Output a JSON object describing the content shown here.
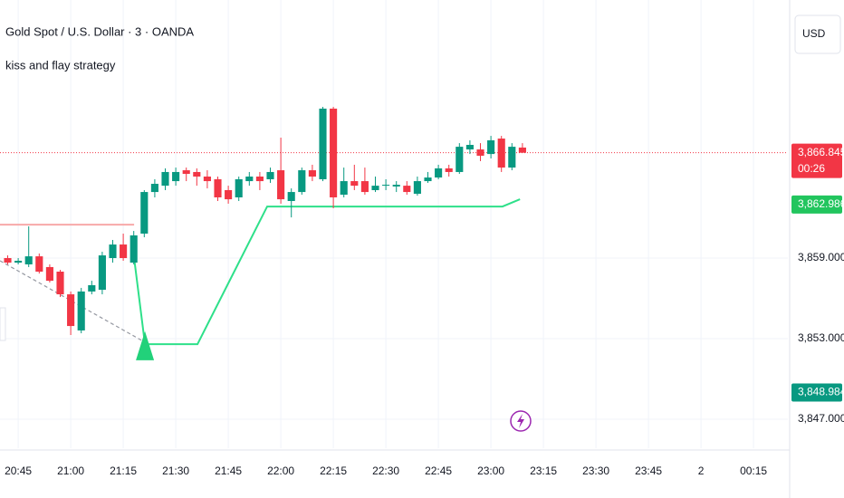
{
  "header": {
    "title": "Gold Spot / U.S. Dollar · 3 · OANDA",
    "indicator": "kiss and flay strategy",
    "currency": "USD"
  },
  "chart_data": {
    "type": "candlestick",
    "x": [
      1242,
      1245,
      1248,
      1251,
      1254,
      1257,
      1260,
      1263,
      1266,
      1269,
      1272,
      1275,
      1278,
      1281,
      1284,
      1287,
      1290,
      1293,
      1296,
      1299,
      1302,
      1305,
      1308,
      1311,
      1314,
      1317,
      1320,
      1323,
      1326,
      1329,
      1332,
      1335,
      1338,
      1341,
      1344,
      1347,
      1350,
      1353,
      1356,
      1359,
      1362,
      1365,
      1368,
      1371,
      1374,
      1377,
      1380,
      1383,
      1386,
      1389
    ],
    "open": [
      3859.0,
      3858.66,
      3858.53,
      3859.13,
      3858.33,
      3857.99,
      3856.3,
      3853.61,
      3856.51,
      3856.64,
      3859.0,
      3860.01,
      3858.66,
      3860.82,
      3863.92,
      3864.39,
      3864.73,
      3865.54,
      3865.41,
      3865.07,
      3864.87,
      3864.06,
      3863.52,
      3864.73,
      3865.07,
      3864.87,
      3865.54,
      3863.25,
      3863.92,
      3865.54,
      3864.87,
      3870.13,
      3863.72,
      3864.73,
      3864.73,
      3864.06,
      3864.39,
      3864.33,
      3864.39,
      3863.79,
      3864.73,
      3865.0,
      3865.68,
      3865.41,
      3867.09,
      3867.09,
      3866.75,
      3867.9,
      3865.74,
      3867.23
    ],
    "high": [
      3859.2,
      3859.0,
      3861.36,
      3859.34,
      3858.53,
      3858.12,
      3856.51,
      3856.78,
      3857.31,
      3859.47,
      3860.35,
      3860.82,
      3861.02,
      3864.06,
      3864.87,
      3865.68,
      3865.74,
      3865.74,
      3865.68,
      3865.54,
      3865.07,
      3864.39,
      3865.07,
      3865.41,
      3865.41,
      3865.74,
      3867.97,
      3864.19,
      3865.74,
      3865.95,
      3870.26,
      3870.26,
      3865.74,
      3865.95,
      3865.74,
      3865.07,
      3864.87,
      3864.73,
      3864.73,
      3865.07,
      3865.41,
      3865.95,
      3865.95,
      3867.56,
      3867.77,
      3867.56,
      3868.1,
      3868.1,
      3867.56,
      3867.56
    ],
    "low": [
      3858.53,
      3858.53,
      3858.33,
      3857.85,
      3857.18,
      3856.1,
      3853.27,
      3853.4,
      3856.3,
      3856.3,
      3858.66,
      3858.8,
      3858.53,
      3860.55,
      3863.52,
      3864.06,
      3864.39,
      3864.73,
      3864.39,
      3864.19,
      3863.25,
      3863.05,
      3863.25,
      3864.39,
      3864.06,
      3864.6,
      3863.05,
      3862.03,
      3863.72,
      3864.73,
      3864.73,
      3862.71,
      3863.52,
      3864.06,
      3863.72,
      3863.92,
      3864.06,
      3863.92,
      3863.72,
      3863.65,
      3864.6,
      3864.87,
      3865.07,
      3865.27,
      3866.75,
      3866.22,
      3866.42,
      3865.41,
      3865.54,
      3866.89
    ],
    "close": [
      3858.66,
      3858.8,
      3859.13,
      3857.99,
      3857.31,
      3856.3,
      3853.94,
      3856.51,
      3856.98,
      3859.2,
      3860.01,
      3859.0,
      3860.69,
      3863.92,
      3864.53,
      3865.41,
      3865.41,
      3865.27,
      3865.07,
      3864.73,
      3863.52,
      3863.38,
      3864.87,
      3865.07,
      3864.73,
      3865.41,
      3863.38,
      3863.92,
      3865.54,
      3865.07,
      3870.13,
      3863.52,
      3864.73,
      3864.39,
      3863.92,
      3864.39,
      3864.46,
      3864.46,
      3863.92,
      3864.73,
      3865.0,
      3865.68,
      3865.41,
      3867.29,
      3867.43,
      3866.62,
      3867.77,
      3865.74,
      3867.29,
      3866.845
    ],
    "up_color": "#089981",
    "down_color": "#f23645",
    "overlays": [
      {
        "color": "#f7a9a9",
        "dash": false,
        "x": [
          1239.8,
          1278.1
        ],
        "values": [
          3861.49,
          3861.49
        ]
      },
      {
        "color": "#9598a1",
        "dash": true,
        "x": [
          1239.8,
          1281.2
        ],
        "values": [
          3858.8,
          3852.73
        ]
      },
      {
        "color": "#2ee08a",
        "dash": false,
        "x": [
          1278.1,
          1281.2,
          1296.2,
          1316.1,
          1383.3,
          1388.3
        ],
        "values": [
          3859.0,
          3852.59,
          3852.59,
          3862.84,
          3862.84,
          3863.38
        ]
      }
    ],
    "signal": {
      "x": 1281.2,
      "value": 3852.2,
      "color": "#22d17a"
    },
    "xlim": [
      1239.8,
      1464.8
    ],
    "ylim": [
      3844.84,
      3878.22
    ],
    "xticks": [
      {
        "value": 1245,
        "label": "20:45"
      },
      {
        "value": 1260,
        "label": "21:00"
      },
      {
        "value": 1275,
        "label": "21:15"
      },
      {
        "value": 1290,
        "label": "21:30"
      },
      {
        "value": 1305,
        "label": "21:45"
      },
      {
        "value": 1320,
        "label": "22:00"
      },
      {
        "value": 1335,
        "label": "22:15"
      },
      {
        "value": 1350,
        "label": "22:30"
      },
      {
        "value": 1365,
        "label": "22:45"
      },
      {
        "value": 1380,
        "label": "23:00"
      },
      {
        "value": 1395,
        "label": "23:15"
      },
      {
        "value": 1410,
        "label": "23:30"
      },
      {
        "value": 1425,
        "label": "23:45"
      },
      {
        "value": 1440,
        "label": "2"
      },
      {
        "value": 1455,
        "label": "00:15"
      }
    ],
    "yticks": [
      {
        "value": 3859,
        "label": "3,859.000"
      },
      {
        "value": 3853,
        "label": "3,853.000"
      },
      {
        "value": 3847,
        "label": "3,847.000"
      }
    ],
    "grid": true,
    "price_labels": [
      {
        "value": 3866.845,
        "label": "3,866.845",
        "countdown": "00:26",
        "color": "#f23645"
      },
      {
        "value": 3862.986,
        "label": "3,862.986",
        "color": "#22c55e"
      },
      {
        "value": 3848.984,
        "label": "3,848.984",
        "color": "#089981"
      }
    ]
  }
}
